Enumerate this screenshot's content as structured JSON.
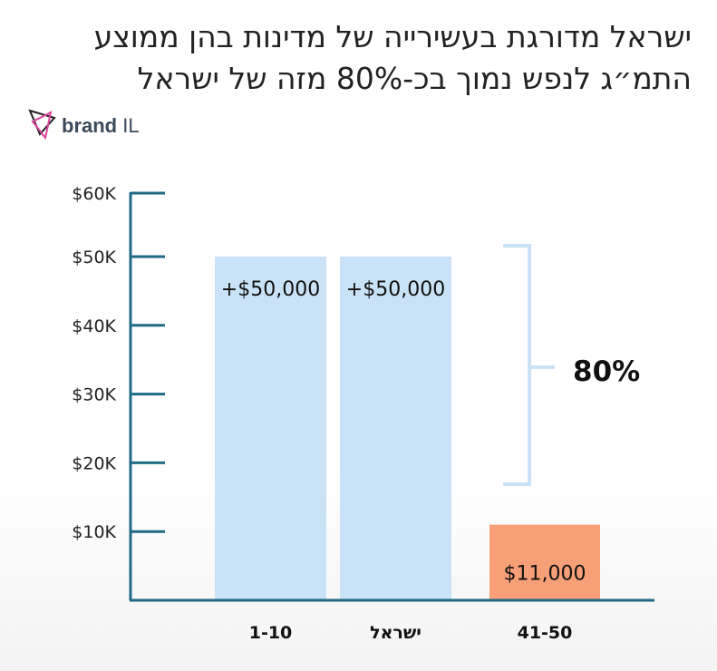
{
  "title_lines": [
    "ישראל מדורגת בעשירייה של מדינות בהן ממוצע",
    "התמ״ג לנפש נמוך בכ-80% מזה של ישראל"
  ],
  "logo": {
    "brand": "brand",
    "suffix": "IL"
  },
  "chart_data": {
    "type": "bar",
    "categories": [
      "1-10",
      "ישראל",
      "41-50"
    ],
    "values": [
      50000,
      50000,
      11000
    ],
    "data_labels": [
      "+$50,000",
      "+$50,000",
      "$11,000"
    ],
    "colors": [
      "#c9e2f8",
      "#c9e2f8",
      "#f7a078"
    ],
    "yticks": [
      "$10K",
      "$20K",
      "$30K",
      "$40K",
      "$50K",
      "$60K"
    ],
    "ytick_values": [
      10000,
      20000,
      30000,
      40000,
      50000,
      60000
    ],
    "ylim": [
      0,
      62000
    ],
    "axis_color": "#1f6b86",
    "brace_color": "#c9e2f8",
    "annotation": "80%"
  }
}
